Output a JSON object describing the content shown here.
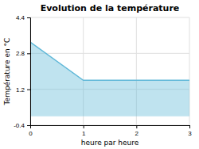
{
  "chart_data": {
    "type": "area",
    "title": "Evolution de la température",
    "xlabel": "heure par heure",
    "ylabel": "Température en °C",
    "x": [
      0,
      1,
      3
    ],
    "values": [
      3.3,
      1.6,
      1.6
    ],
    "color": "#60b8d8",
    "xlim": [
      0,
      3
    ],
    "ylim": [
      -0.4,
      4.4
    ],
    "xticks": [
      0,
      1,
      2,
      3
    ],
    "yticks": [
      -0.4,
      1.2,
      2.8,
      4.4
    ],
    "grid": true
  }
}
